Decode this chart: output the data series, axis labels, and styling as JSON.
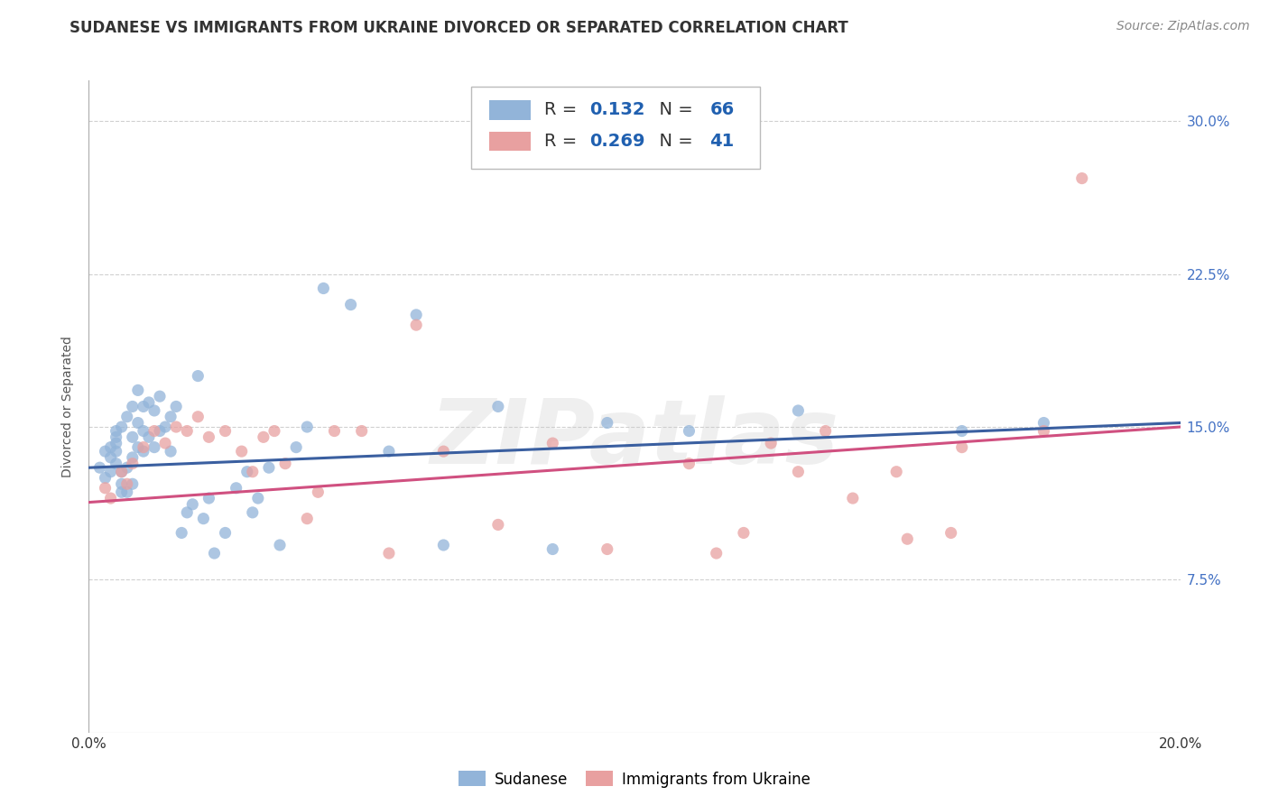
{
  "title": "SUDANESE VS IMMIGRANTS FROM UKRAINE DIVORCED OR SEPARATED CORRELATION CHART",
  "source": "Source: ZipAtlas.com",
  "ylabel": "Divorced or Separated",
  "x_min": 0.0,
  "x_max": 0.2,
  "y_min": 0.0,
  "y_max": 0.32,
  "y_ticks": [
    0.075,
    0.15,
    0.225,
    0.3
  ],
  "y_tick_labels": [
    "7.5%",
    "15.0%",
    "22.5%",
    "30.0%"
  ],
  "watermark_text": "ZIPatlas",
  "blue_color": "#92b4d9",
  "pink_color": "#e8a0a0",
  "blue_line_color": "#3a5fa0",
  "pink_line_color": "#d05080",
  "legend_blue_r": "0.132",
  "legend_blue_n": "66",
  "legend_pink_r": "0.269",
  "legend_pink_n": "41",
  "blue_scatter_x": [
    0.002,
    0.003,
    0.003,
    0.004,
    0.004,
    0.004,
    0.005,
    0.005,
    0.005,
    0.005,
    0.005,
    0.006,
    0.006,
    0.006,
    0.006,
    0.007,
    0.007,
    0.007,
    0.008,
    0.008,
    0.008,
    0.008,
    0.009,
    0.009,
    0.009,
    0.01,
    0.01,
    0.01,
    0.011,
    0.011,
    0.012,
    0.012,
    0.013,
    0.013,
    0.014,
    0.015,
    0.015,
    0.016,
    0.017,
    0.018,
    0.019,
    0.02,
    0.021,
    0.022,
    0.023,
    0.025,
    0.027,
    0.029,
    0.03,
    0.031,
    0.033,
    0.035,
    0.038,
    0.04,
    0.043,
    0.048,
    0.055,
    0.06,
    0.065,
    0.075,
    0.085,
    0.095,
    0.11,
    0.13,
    0.16,
    0.175
  ],
  "blue_scatter_y": [
    0.13,
    0.125,
    0.138,
    0.14,
    0.128,
    0.135,
    0.145,
    0.132,
    0.148,
    0.138,
    0.142,
    0.15,
    0.128,
    0.122,
    0.118,
    0.155,
    0.13,
    0.118,
    0.16,
    0.145,
    0.135,
    0.122,
    0.168,
    0.152,
    0.14,
    0.16,
    0.148,
    0.138,
    0.162,
    0.145,
    0.158,
    0.14,
    0.165,
    0.148,
    0.15,
    0.155,
    0.138,
    0.16,
    0.098,
    0.108,
    0.112,
    0.175,
    0.105,
    0.115,
    0.088,
    0.098,
    0.12,
    0.128,
    0.108,
    0.115,
    0.13,
    0.092,
    0.14,
    0.15,
    0.218,
    0.21,
    0.138,
    0.205,
    0.092,
    0.16,
    0.09,
    0.152,
    0.148,
    0.158,
    0.148,
    0.152
  ],
  "pink_scatter_x": [
    0.003,
    0.004,
    0.006,
    0.007,
    0.008,
    0.01,
    0.012,
    0.014,
    0.016,
    0.018,
    0.02,
    0.022,
    0.025,
    0.028,
    0.03,
    0.032,
    0.034,
    0.036,
    0.04,
    0.042,
    0.045,
    0.05,
    0.055,
    0.06,
    0.065,
    0.075,
    0.085,
    0.095,
    0.11,
    0.12,
    0.13,
    0.14,
    0.15,
    0.16,
    0.175,
    0.182,
    0.115,
    0.125,
    0.135,
    0.148,
    0.158
  ],
  "pink_scatter_y": [
    0.12,
    0.115,
    0.128,
    0.122,
    0.132,
    0.14,
    0.148,
    0.142,
    0.15,
    0.148,
    0.155,
    0.145,
    0.148,
    0.138,
    0.128,
    0.145,
    0.148,
    0.132,
    0.105,
    0.118,
    0.148,
    0.148,
    0.088,
    0.2,
    0.138,
    0.102,
    0.142,
    0.09,
    0.132,
    0.098,
    0.128,
    0.115,
    0.095,
    0.14,
    0.148,
    0.272,
    0.088,
    0.142,
    0.148,
    0.128,
    0.098
  ],
  "blue_line_x0": 0.0,
  "blue_line_x1": 0.2,
  "blue_line_y0": 0.13,
  "blue_line_y1": 0.152,
  "pink_line_x0": 0.0,
  "pink_line_x1": 0.2,
  "pink_line_y0": 0.113,
  "pink_line_y1": 0.15,
  "grid_color": "#d0d0d0",
  "background_color": "#ffffff",
  "title_fontsize": 12,
  "axis_label_fontsize": 10,
  "tick_fontsize": 11,
  "source_fontsize": 10
}
